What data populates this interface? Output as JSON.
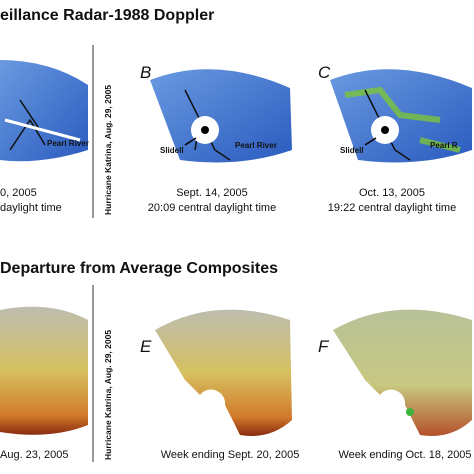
{
  "top_section": {
    "title": "eillance Radar-1988 Doppler",
    "divider_label": "Hurricane Katrina, Aug. 29, 2005",
    "panels": [
      {
        "river": "Pearl River",
        "date": "0, 2005",
        "time": "daylight time"
      },
      {
        "letter": "B",
        "river": "Pearl River",
        "city": "Slidell",
        "date": "Sept. 14, 2005",
        "time": "20:09 central daylight time"
      },
      {
        "letter": "C",
        "river": "Pearl R",
        "city": "Slidell",
        "date": "Oct. 13, 2005",
        "time": "19:22 central daylight time"
      }
    ]
  },
  "bottom_section": {
    "title": "Departure from Average Composites",
    "divider_label": "Hurricane Katrina, Aug. 29, 2005",
    "panels": [
      {
        "caption": "Aug. 23, 2005"
      },
      {
        "letter": "E",
        "caption": "Week ending Sept. 20, 2005"
      },
      {
        "letter": "F",
        "caption": "Week ending Oct. 18, 2005"
      }
    ]
  }
}
